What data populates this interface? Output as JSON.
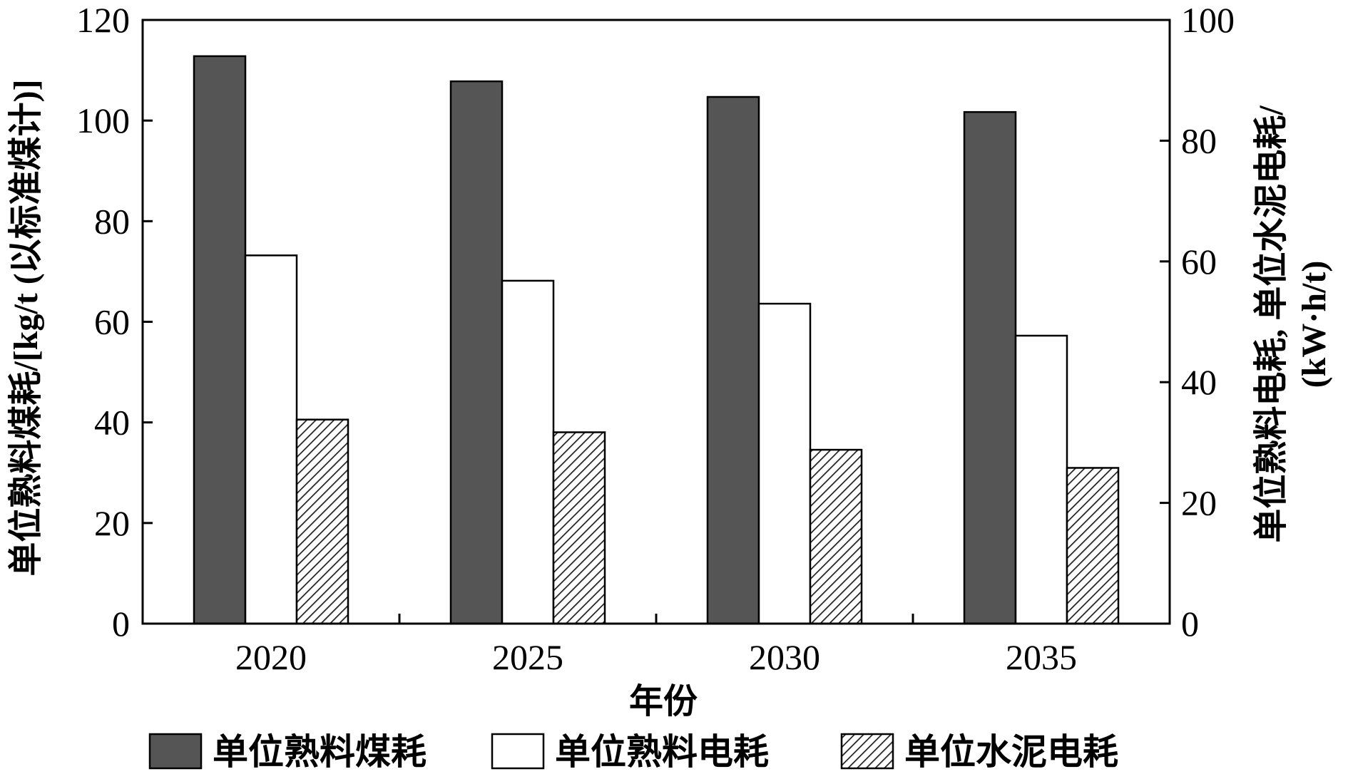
{
  "chart_data": {
    "type": "bar",
    "categories": [
      "2020",
      "2025",
      "2030",
      "2035"
    ],
    "xlabel": "年份",
    "ylabel_left": "单位熟料煤耗/[kg/t (以标准煤计)]",
    "ylabel_right_line1": "单位熟料电耗, 单位水泥电耗/",
    "ylabel_right_line2": "(kW·h/t)",
    "ylim_left": [
      0,
      120
    ],
    "yticks_left": [
      "0",
      "20",
      "40",
      "60",
      "80",
      "100",
      "120"
    ],
    "ylim_right": [
      0,
      100
    ],
    "yticks_right": [
      "0",
      "20",
      "40",
      "60",
      "80",
      "100"
    ],
    "legend_position": "bottom",
    "series": [
      {
        "name": "单位熟料煤耗",
        "axis": "left",
        "style": "solid-dark",
        "color": "#555555",
        "values": [
          112.8,
          107.8,
          104.7,
          101.7
        ]
      },
      {
        "name": "单位熟料电耗",
        "axis": "right",
        "style": "white",
        "color": "#ffffff",
        "values": [
          61.0,
          56.8,
          53.0,
          47.7
        ]
      },
      {
        "name": "单位水泥电耗",
        "axis": "right",
        "style": "hatched",
        "color": "#888888",
        "values": [
          33.8,
          31.7,
          28.8,
          25.8
        ]
      }
    ]
  }
}
